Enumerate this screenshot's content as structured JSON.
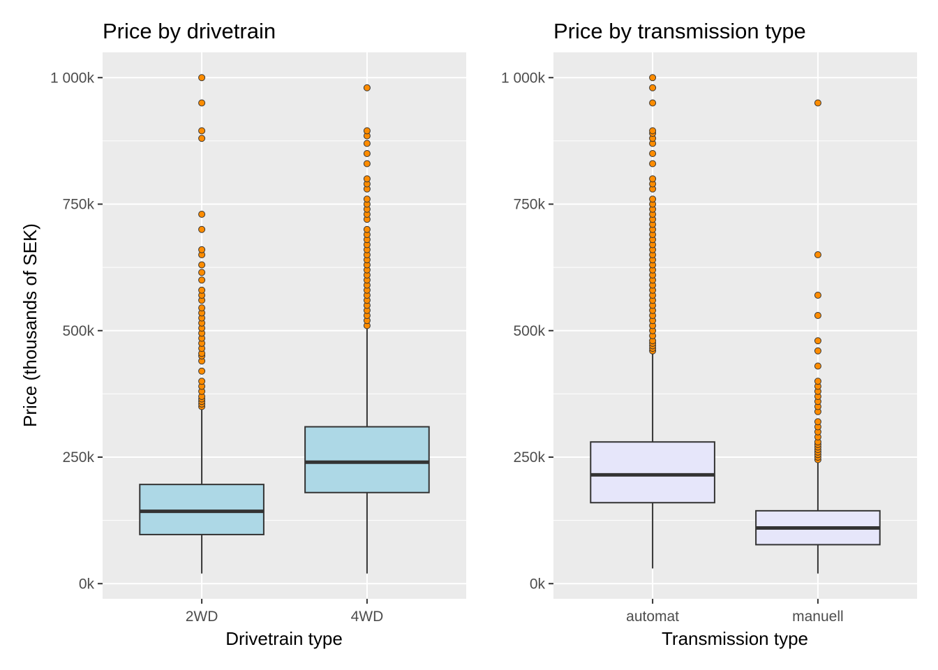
{
  "chart_data": [
    {
      "type": "box",
      "title": "Price by drivetrain",
      "xlabel": "Drivetrain type",
      "ylabel": "Price (thousands of SEK)",
      "ylim": [
        -30,
        1050
      ],
      "y_ticks": [
        0,
        250,
        500,
        750,
        1000
      ],
      "y_tick_labels": [
        "0k",
        "250k",
        "500k",
        "750k",
        "1 000k"
      ],
      "categories": [
        "2WD",
        "4WD"
      ],
      "box_color": "#add8e6",
      "outlier_color": "#ff8c00",
      "boxes": [
        {
          "category": "2WD",
          "whisker_low": 20,
          "q1": 97,
          "median": 143,
          "q3": 196,
          "whisker_high": 345,
          "outliers": [
            350,
            355,
            360,
            365,
            370,
            380,
            390,
            400,
            420,
            440,
            450,
            455,
            465,
            475,
            485,
            495,
            505,
            515,
            525,
            535,
            545,
            560,
            570,
            580,
            600,
            615,
            630,
            650,
            660,
            700,
            730,
            880,
            895,
            950,
            1000
          ]
        },
        {
          "category": "4WD",
          "whisker_low": 20,
          "q1": 180,
          "median": 240,
          "q3": 310,
          "whisker_high": 505,
          "outliers": [
            510,
            520,
            530,
            540,
            550,
            560,
            570,
            580,
            590,
            600,
            610,
            620,
            630,
            640,
            650,
            660,
            670,
            680,
            690,
            700,
            720,
            730,
            740,
            750,
            760,
            780,
            790,
            800,
            830,
            850,
            870,
            885,
            895,
            980
          ]
        }
      ]
    },
    {
      "type": "box",
      "title": "Price by transmission type",
      "xlabel": "Transmission type",
      "ylabel": "",
      "ylim": [
        -30,
        1050
      ],
      "y_ticks": [
        0,
        250,
        500,
        750,
        1000
      ],
      "y_tick_labels": [
        "0k",
        "250k",
        "500k",
        "750k",
        "1 000k"
      ],
      "categories": [
        "automat",
        "manuell"
      ],
      "box_color": "#e6e6fa",
      "outlier_color": "#ff8c00",
      "boxes": [
        {
          "category": "automat",
          "whisker_low": 30,
          "q1": 160,
          "median": 215,
          "q3": 280,
          "whisker_high": 455,
          "outliers": [
            460,
            465,
            470,
            475,
            480,
            490,
            500,
            510,
            520,
            530,
            540,
            550,
            560,
            570,
            580,
            590,
            600,
            610,
            620,
            630,
            640,
            650,
            660,
            670,
            680,
            690,
            700,
            710,
            720,
            730,
            740,
            750,
            760,
            780,
            790,
            800,
            830,
            850,
            870,
            880,
            890,
            895,
            950,
            980,
            1000
          ]
        },
        {
          "category": "manuell",
          "whisker_low": 20,
          "q1": 77,
          "median": 110,
          "q3": 144,
          "whisker_high": 240,
          "outliers": [
            245,
            250,
            255,
            260,
            265,
            270,
            275,
            280,
            290,
            300,
            310,
            320,
            340,
            350,
            360,
            370,
            380,
            390,
            400,
            430,
            460,
            480,
            530,
            570,
            650,
            950
          ]
        }
      ]
    }
  ]
}
